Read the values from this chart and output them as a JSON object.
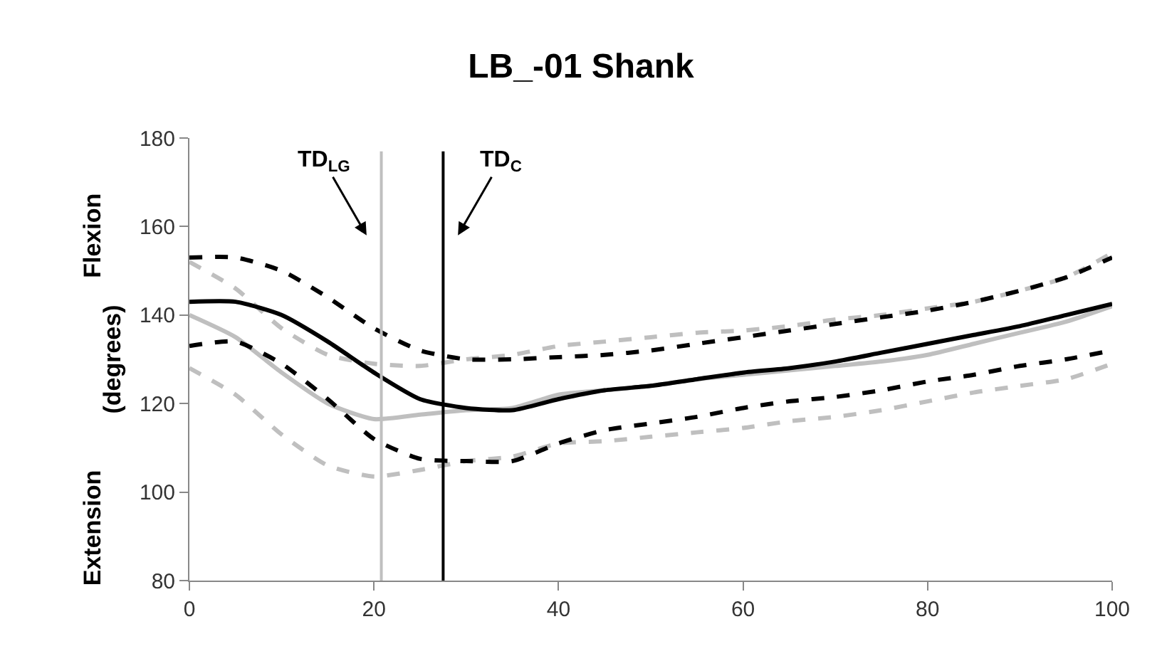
{
  "chart_data": {
    "type": "line",
    "title": "LB_-01 Shank",
    "ylabel": "(degrees)",
    "x": [
      0,
      5,
      10,
      15,
      20,
      25,
      30,
      35,
      40,
      45,
      50,
      55,
      60,
      65,
      70,
      75,
      80,
      85,
      90,
      95,
      100
    ],
    "series": [
      {
        "color": "#bfbfbf",
        "line_style": "dashed",
        "values": [
          152,
          146,
          137,
          131,
          129,
          128.5,
          130,
          131,
          133,
          134,
          135,
          136,
          136.5,
          137.5,
          139,
          140,
          141.5,
          143,
          145.5,
          148.5,
          154
        ]
      },
      {
        "color": "#bfbfbf",
        "line_style": "dashed",
        "values": [
          128,
          122,
          113,
          106,
          103.5,
          105,
          107,
          108,
          111,
          111.5,
          112.5,
          113.5,
          114.5,
          116,
          117,
          118.5,
          120.5,
          122.5,
          124,
          125.5,
          129
        ]
      },
      {
        "color": "#bfbfbf",
        "line_style": "solid",
        "values": [
          140,
          135,
          127,
          120,
          116.5,
          117.5,
          118.5,
          119,
          122,
          123,
          124,
          125.5,
          126.5,
          127.5,
          128.5,
          129.5,
          131,
          133.5,
          136,
          138.5,
          142
        ]
      },
      {
        "color": "#000000",
        "line_style": "dashed",
        "values": [
          153,
          153,
          150,
          144,
          137,
          132,
          130,
          130,
          130.5,
          131,
          132,
          133.5,
          135,
          136.5,
          138,
          139.5,
          141,
          143,
          145.5,
          148.5,
          153
        ]
      },
      {
        "color": "#000000",
        "line_style": "dashed",
        "values": [
          133,
          134,
          129,
          121,
          112,
          107.5,
          107,
          107,
          111,
          114,
          115.5,
          117,
          119,
          120.5,
          121.5,
          123,
          125,
          126.5,
          128.5,
          130,
          132
        ]
      },
      {
        "color": "#000000",
        "line_style": "solid",
        "values": [
          143,
          143,
          140,
          134,
          127,
          121,
          119,
          118.5,
          121,
          123,
          124,
          125.5,
          127,
          128,
          129.5,
          131.5,
          133.5,
          135.5,
          137.5,
          140,
          142.5
        ]
      }
    ],
    "xlim": [
      0,
      100
    ],
    "xticks": [
      0,
      20,
      40,
      60,
      80,
      100
    ],
    "ylim": [
      80,
      180
    ],
    "yticks": [
      80,
      100,
      120,
      140,
      160,
      180
    ],
    "ref_lines": [
      {
        "axis": "x",
        "value": 20.8,
        "color": "#bfbfbf"
      },
      {
        "axis": "x",
        "value": 27.5,
        "color": "#000000"
      }
    ],
    "annotations": [
      "TD$_{LG}$",
      "TD$_{C}$",
      "Flexion",
      "Extension"
    ],
    "marker": "none"
  }
}
